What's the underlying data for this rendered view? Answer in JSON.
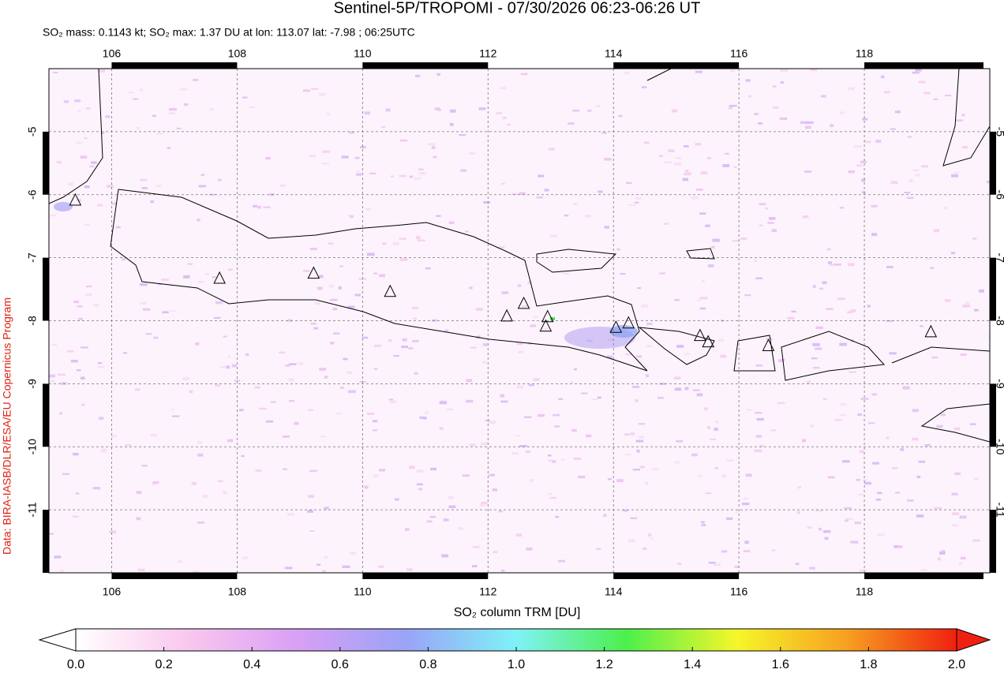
{
  "chart_data": {
    "type": "map",
    "title": "Sentinel-5P/TROPOMI - 07/30/2026 06:23-06:26 UT",
    "subtitle": "SO₂ mass: 0.1143 kt; SO₂ max: 1.37 DU at lon: 113.07 lat: -7.98 ; 06:25UTC",
    "credit": "Data: BIRA-IASB/DLR/ESA/EU Copernicus Program",
    "xlim": [
      105,
      120
    ],
    "ylim": [
      -4,
      -12
    ],
    "xticks": [
      106,
      108,
      110,
      112,
      114,
      116,
      118
    ],
    "yticks": [
      -5,
      -6,
      -7,
      -8,
      -9,
      -10,
      -11
    ],
    "grid": true,
    "volcanoes": {
      "x": [
        105.42,
        107.72,
        109.22,
        110.44,
        112.3,
        112.57,
        112.95,
        112.92,
        114.04,
        114.24,
        115.38,
        115.51,
        116.47,
        119.06
      ],
      "y": [
        -6.09,
        -7.33,
        -7.25,
        -7.54,
        -7.93,
        -7.73,
        -7.94,
        -8.09,
        -8.11,
        -8.04,
        -8.24,
        -8.34,
        -8.4,
        -8.18
      ]
    },
    "colorbar": {
      "label": "SO₂ column TRM [DU]",
      "lim": [
        0,
        2
      ],
      "colors": [
        "#ffffff",
        "#f9c8ee",
        "#d9a0f5",
        "#9aa3f7",
        "#7ff2f7",
        "#4cf04c",
        "#f6f62a",
        "#f7a020",
        "#f02010"
      ],
      "ticks": [
        {
          "value": 0,
          "label": "0.0"
        },
        {
          "value": 0.2,
          "label": "0.2"
        },
        {
          "value": 0.4,
          "label": "0.4"
        },
        {
          "value": 0.6,
          "label": "0.6"
        },
        {
          "value": 0.8,
          "label": "0.8"
        },
        {
          "value": 1,
          "label": "1.0"
        },
        {
          "value": 1.2,
          "label": "1.2"
        },
        {
          "value": 1.4,
          "label": "1.4"
        },
        {
          "value": 1.6,
          "label": "1.6"
        },
        {
          "value": 1.8,
          "label": "1.8"
        },
        {
          "value": 2,
          "label": "2.0"
        }
      ]
    }
  }
}
